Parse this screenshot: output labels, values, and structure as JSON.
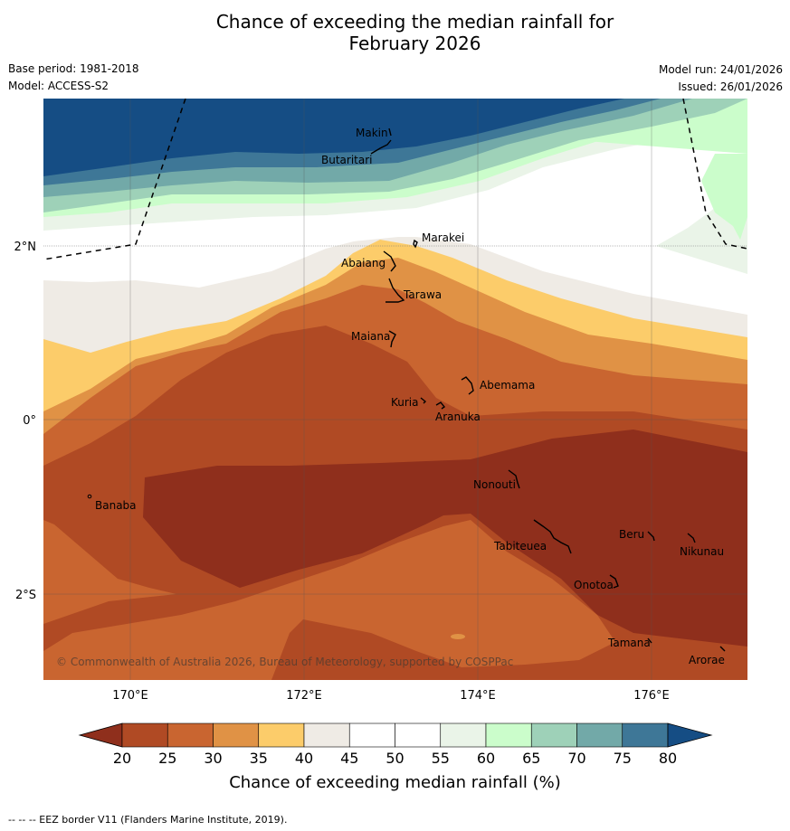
{
  "title": {
    "line1": "Chance of exceeding the median rainfall for",
    "line2": "February 2026"
  },
  "meta": {
    "base_period": "Base period: 1981-2018",
    "model": "Model: ACCESS-S2",
    "model_run": "Model run: 24/01/2026",
    "issued": "Issued: 26/01/2026"
  },
  "axes": {
    "x_ticks": [
      {
        "lon": 170,
        "label": "170°E"
      },
      {
        "lon": 172,
        "label": "172°E"
      },
      {
        "lon": 174,
        "label": "174°E"
      },
      {
        "lon": 176,
        "label": "176°E"
      }
    ],
    "y_ticks": [
      {
        "lat": 2,
        "label": "2°N"
      },
      {
        "lat": 0,
        "label": "0°"
      },
      {
        "lat": -2,
        "label": "2°S"
      }
    ]
  },
  "places": [
    {
      "name": "Makin"
    },
    {
      "name": "Butaritari"
    },
    {
      "name": "Marakei"
    },
    {
      "name": "Abaiang"
    },
    {
      "name": "Tarawa"
    },
    {
      "name": "Maiana"
    },
    {
      "name": "Abemama"
    },
    {
      "name": "Kuria"
    },
    {
      "name": "Aranuka"
    },
    {
      "name": "Banaba"
    },
    {
      "name": "Nonouti"
    },
    {
      "name": "Beru"
    },
    {
      "name": "Tabiteuea"
    },
    {
      "name": "Nikunau"
    },
    {
      "name": "Onotoa"
    },
    {
      "name": "Tamana"
    },
    {
      "name": "Arorae"
    }
  ],
  "copyright": "© Commonwealth of Australia 2026, Bureau of Meteorology, supported by COSPPac",
  "colorbar": {
    "ticks": [
      "20",
      "25",
      "30",
      "35",
      "40",
      "45",
      "50",
      "55",
      "60",
      "65",
      "70",
      "75",
      "80"
    ],
    "colors": {
      "lt20": "#8f2f1c",
      "c20_25": "#b04a24",
      "c25_30": "#c96530",
      "c30_35": "#e09245",
      "c35_40": "#fccc6a",
      "c40_45": "#efebe5",
      "c45_50": "#ffffff",
      "c50_55": "#ffffff",
      "c55_60": "#eaf4e8",
      "c60_65": "#cbfdcb",
      "c65_70": "#9ed1b8",
      "c70_75": "#72a9a8",
      "c75_80": "#3e7797",
      "gt80": "#154d84"
    },
    "label": "Chance of exceeding median rainfall (%)"
  },
  "footer": "--  --  -- EEZ border V11 (Flanders Marine Institute, 2019)."
}
